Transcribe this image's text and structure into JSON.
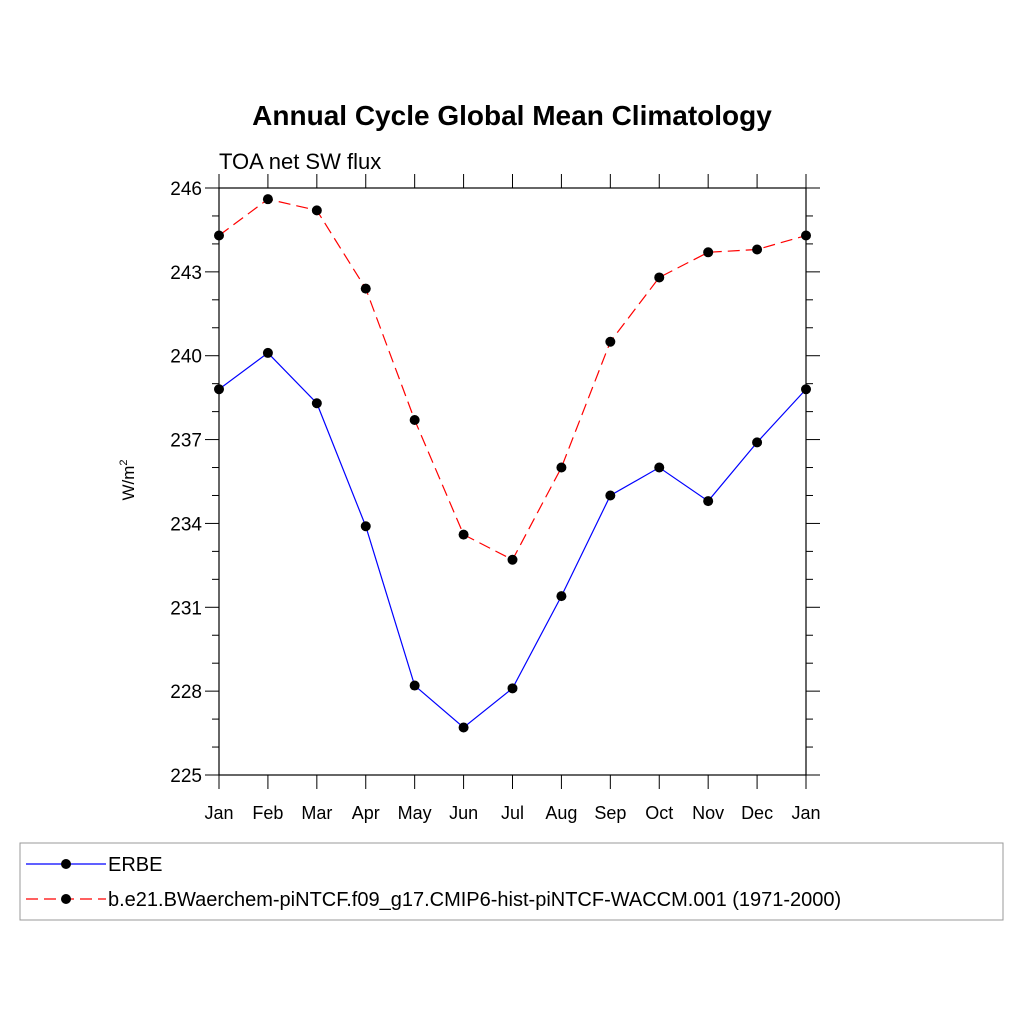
{
  "chart_data": {
    "type": "line",
    "title": "Annual Cycle Global Mean Climatology",
    "subtitle": "TOA net SW flux",
    "ylabel_base": "W/m",
    "ylabel_sup": "2",
    "xlabel": "",
    "categories": [
      "Jan",
      "Feb",
      "Mar",
      "Apr",
      "May",
      "Jun",
      "Jul",
      "Aug",
      "Sep",
      "Oct",
      "Nov",
      "Dec",
      "Jan"
    ],
    "ylim": [
      225,
      246
    ],
    "yticks": [
      225,
      228,
      231,
      234,
      237,
      240,
      243,
      246
    ],
    "ytick_labels": [
      "225",
      "228",
      "231",
      "234",
      "237",
      "240",
      "243",
      "246"
    ],
    "series": [
      {
        "name": "ERBE",
        "color": "#0000ff",
        "dash": "solid",
        "values": [
          238.8,
          240.1,
          238.3,
          233.9,
          228.2,
          226.7,
          228.1,
          231.4,
          235.0,
          236.0,
          234.8,
          236.9,
          238.8
        ]
      },
      {
        "name": "b.e21.BWaerchem-piNTCF.f09_g17.CMIP6-hist-piNTCF-WACCM.001 (1971-2000)",
        "color": "#ff0000",
        "dash": "dashed",
        "values": [
          244.3,
          245.6,
          245.2,
          242.4,
          237.7,
          233.6,
          232.7,
          236.0,
          240.5,
          242.8,
          243.7,
          243.8,
          244.3
        ]
      }
    ],
    "legend_placement": "bottom",
    "grid": false
  }
}
